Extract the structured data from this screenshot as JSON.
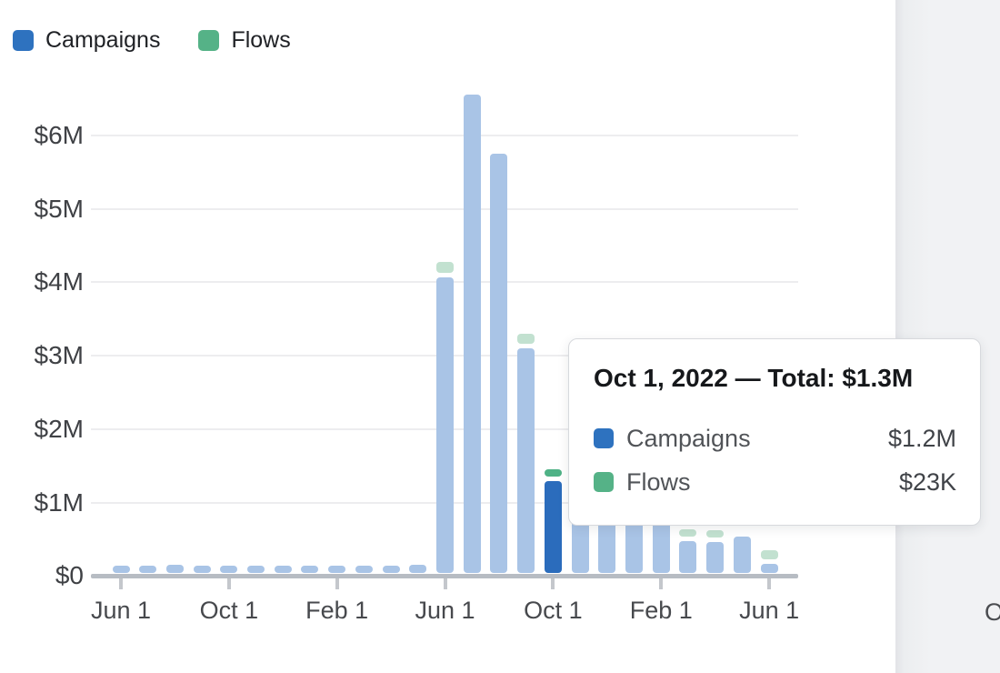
{
  "legend": {
    "items": [
      {
        "label": "Campaigns",
        "color": "#2e72bf"
      },
      {
        "label": "Flows",
        "color": "#55b287"
      }
    ]
  },
  "chart_data": {
    "type": "bar",
    "stacked": true,
    "grid": true,
    "legend_position": "top-left",
    "value_unit": "USD millions",
    "ylim_musd": [
      0,
      6.6
    ],
    "y_tick_labels": [
      "$6M",
      "$5M",
      "$4M",
      "$3M",
      "$2M",
      "$1M",
      "$0"
    ],
    "x_tick_labels": [
      "Jun 1",
      "Oct 1",
      "Feb 1",
      "Jun 1",
      "Oct 1",
      "Feb 1",
      "Jun 1"
    ],
    "series_names": [
      "Campaigns",
      "Flows"
    ],
    "highlighted_index": 16,
    "months": [
      {
        "date": "Jun 1, 2021",
        "campaigns_musd": 0.1,
        "flows_musd": 0
      },
      {
        "date": "Jul 1, 2021",
        "campaigns_musd": 0.1,
        "flows_musd": 0
      },
      {
        "date": "Aug 1, 2021",
        "campaigns_musd": 0.11,
        "flows_musd": 0
      },
      {
        "date": "Sep 1, 2021",
        "campaigns_musd": 0.1,
        "flows_musd": 0
      },
      {
        "date": "Oct 1, 2021",
        "campaigns_musd": 0.1,
        "flows_musd": 0
      },
      {
        "date": "Nov 1, 2021",
        "campaigns_musd": 0.09,
        "flows_musd": 0
      },
      {
        "date": "Dec 1, 2021",
        "campaigns_musd": 0.1,
        "flows_musd": 0
      },
      {
        "date": "Jan 1, 2022",
        "campaigns_musd": 0.08,
        "flows_musd": 0
      },
      {
        "date": "Feb 1, 2022",
        "campaigns_musd": 0.1,
        "flows_musd": 0
      },
      {
        "date": "Mar 1, 2022",
        "campaigns_musd": 0.09,
        "flows_musd": 0
      },
      {
        "date": "Apr 1, 2022",
        "campaigns_musd": 0.1,
        "flows_musd": 0
      },
      {
        "date": "May 1, 2022",
        "campaigns_musd": 0.11,
        "flows_musd": 0
      },
      {
        "date": "Jun 1, 2022",
        "campaigns_musd": 4.03,
        "flows_musd": 0.15
      },
      {
        "date": "Jul 1, 2022",
        "campaigns_musd": 6.52,
        "flows_musd": 0
      },
      {
        "date": "Aug 1, 2022",
        "campaigns_musd": 5.71,
        "flows_musd": 0
      },
      {
        "date": "Sep 1, 2022",
        "campaigns_musd": 3.06,
        "flows_musd": 0.14
      },
      {
        "date": "Oct 1, 2022",
        "campaigns_musd": 1.25,
        "flows_musd": 0.023
      },
      {
        "date": "Nov 1, 2022",
        "campaigns_musd": 0.9,
        "flows_musd": 0
      },
      {
        "date": "Dec 1, 2022",
        "campaigns_musd": 0.82,
        "flows_musd": 0
      },
      {
        "date": "Jan 1, 2023",
        "campaigns_musd": 0.76,
        "flows_musd": 0
      },
      {
        "date": "Feb 1, 2023",
        "campaigns_musd": 0.7,
        "flows_musd": 0
      },
      {
        "date": "Mar 1, 2023",
        "campaigns_musd": 0.43,
        "flows_musd": 0.06
      },
      {
        "date": "Apr 1, 2023",
        "campaigns_musd": 0.42,
        "flows_musd": 0.06
      },
      {
        "date": "May 1, 2023",
        "campaigns_musd": 0.5,
        "flows_musd": 0
      },
      {
        "date": "Jun 1, 2023",
        "campaigns_musd": 0.13,
        "flows_musd": 0.12
      }
    ]
  },
  "tooltip": {
    "title": "Oct 1, 2022 — Total: $1.3M",
    "rows": [
      {
        "label": "Campaigns",
        "value": "$1.2M",
        "color": "#2e72bf"
      },
      {
        "label": "Flows",
        "value": "$23K",
        "color": "#55b287"
      }
    ]
  },
  "side_panel": {
    "partial_tick_label": "O"
  },
  "colors": {
    "campaigns_selected": "#2b6cbc",
    "campaigns_muted": "#a9c4e6",
    "flows_selected": "#4fb286",
    "flows_muted": "#c2e1d0",
    "gridline": "#ededef",
    "axis_line": "#b7bcc3",
    "tick_mark": "#c4c7cc",
    "axis_label_text": "#44464a",
    "panel_background": "#f1f2f4"
  }
}
